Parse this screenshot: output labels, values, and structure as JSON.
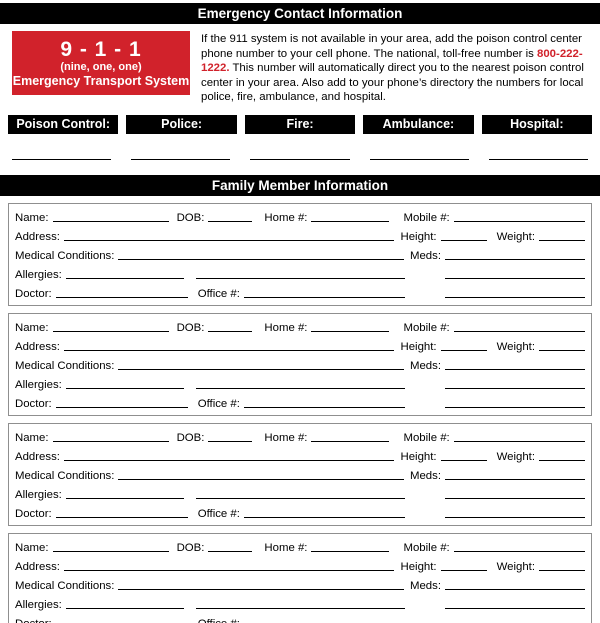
{
  "colors": {
    "accent_red": "#d1222b",
    "bar_black": "#000000"
  },
  "header": {
    "title": "Emergency Contact Information"
  },
  "emergency_box": {
    "number": "9 - 1 - 1",
    "pronunciation": "(nine, one, one)",
    "subtitle": "Emergency Transport System"
  },
  "intro": {
    "before_phone": "If the 911 system is not available in your area, add the poison control center phone number to your cell phone. The national, toll-free number is ",
    "phone": "800-222-1222.",
    "after_phone": " This number will automatically direct you to the nearest poison control center in your area. Also add to your phone’s directory the numbers for local police, fire, ambulance, and hospital."
  },
  "contact_labels": [
    {
      "label": "Poison Control:"
    },
    {
      "label": "Police:"
    },
    {
      "label": "Fire:"
    },
    {
      "label": "Ambulance:"
    },
    {
      "label": "Hospital:"
    }
  ],
  "family_section": {
    "title": "Family Member Information"
  },
  "member_fields": {
    "name": "Name:",
    "dob": "DOB:",
    "home": "Home #:",
    "mobile": "Mobile #:",
    "address": "Address:",
    "height": "Height:",
    "weight": "Weight:",
    "medical_conditions": "Medical Conditions:",
    "meds": "Meds:",
    "allergies": "Allergies:",
    "doctor": "Doctor:",
    "office": "Office #:"
  },
  "member_block_count": 4
}
